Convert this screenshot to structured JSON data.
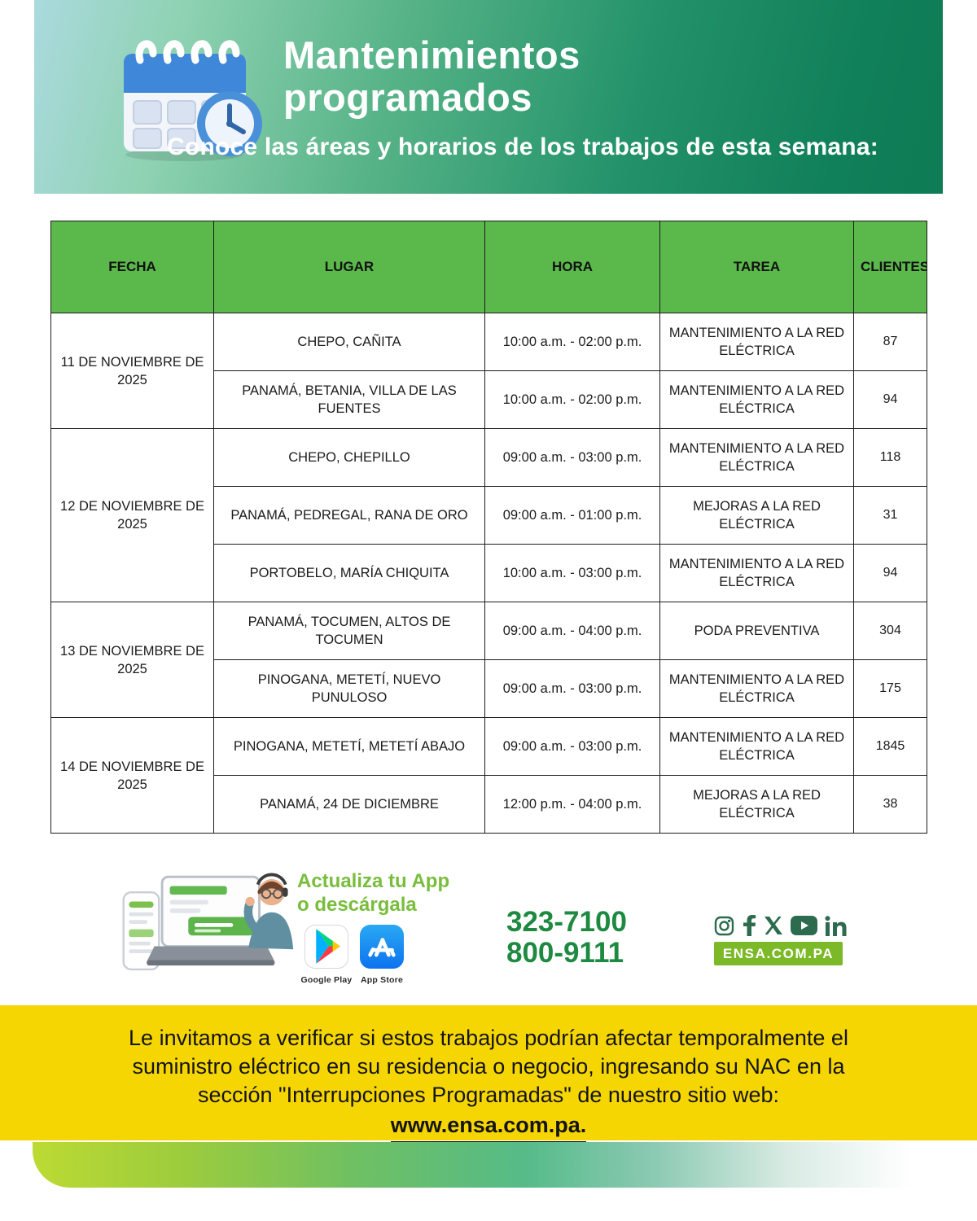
{
  "header": {
    "title_line1": "Mantenimientos",
    "title_line2": "programados",
    "subtitle": "Conoce las áreas y horarios de los trabajos de esta semana:",
    "icon": "calendar-clock-icon"
  },
  "table": {
    "columns": [
      "FECHA",
      "LUGAR",
      "HORA",
      "TAREA",
      "CLIENTES"
    ],
    "groups": [
      {
        "date": "11 DE NOVIEMBRE DE 2025",
        "rows": [
          {
            "lugar": "CHEPO, CAÑITA",
            "hora": "10:00 a.m. - 02:00 p.m.",
            "tarea": "MANTENIMIENTO A LA RED ELÉCTRICA",
            "clientes": "87"
          },
          {
            "lugar": "PANAMÁ, BETANIA, VILLA DE LAS FUENTES",
            "hora": "10:00 a.m. - 02:00 p.m.",
            "tarea": "MANTENIMIENTO A LA RED ELÉCTRICA",
            "clientes": "94"
          }
        ]
      },
      {
        "date": "12 DE NOVIEMBRE DE 2025",
        "rows": [
          {
            "lugar": "CHEPO, CHEPILLO",
            "hora": "09:00 a.m. - 03:00 p.m.",
            "tarea": "MANTENIMIENTO A LA RED ELÉCTRICA",
            "clientes": "118"
          },
          {
            "lugar": "PANAMÁ, PEDREGAL, RANA DE ORO",
            "hora": "09:00 a.m. - 01:00 p.m.",
            "tarea": "MEJORAS A LA RED ELÉCTRICA",
            "clientes": "31"
          },
          {
            "lugar": "PORTOBELO, MARÍA CHIQUITA",
            "hora": "10:00 a.m. - 03:00 p.m.",
            "tarea": "MANTENIMIENTO A LA RED ELÉCTRICA",
            "clientes": "94"
          }
        ]
      },
      {
        "date": "13 DE NOVIEMBRE DE 2025",
        "rows": [
          {
            "lugar": "PANAMÁ, TOCUMEN, ALTOS DE TOCUMEN",
            "hora": "09:00 a.m. - 04:00 p.m.",
            "tarea": "PODA PREVENTIVA",
            "clientes": "304"
          },
          {
            "lugar": "PINOGANA, METETÍ, NUEVO PUNULOSO",
            "hora": "09:00 a.m. - 03:00 p.m.",
            "tarea": "MANTENIMIENTO A LA RED ELÉCTRICA",
            "clientes": "175"
          }
        ]
      },
      {
        "date": "14 DE NOVIEMBRE DE 2025",
        "rows": [
          {
            "lugar": "PINOGANA, METETÍ, METETÍ ABAJO",
            "hora": "09:00 a.m. - 03:00 p.m.",
            "tarea": "MANTENIMIENTO A LA RED ELÉCTRICA",
            "clientes": "1845"
          },
          {
            "lugar": "PANAMÁ, 24 DE DICIEMBRE",
            "hora": "12:00 p.m. - 04:00 p.m.",
            "tarea": "MEJORAS A LA RED ELÉCTRICA",
            "clientes": "38"
          }
        ]
      }
    ]
  },
  "footer": {
    "app_promo": {
      "line1": "Actualiza tu App",
      "line2": "o descárgala",
      "google_play_label": "Google Play",
      "app_store_label": "App Store"
    },
    "phones": [
      "323-7100",
      "800-9111"
    ],
    "social_icons": [
      "instagram-icon",
      "facebook-icon",
      "x-icon",
      "youtube-icon",
      "linkedin-icon"
    ],
    "website_badge": "ENSA.COM.PA"
  },
  "notice": {
    "lines": [
      "Le invitamos a verificar si estos trabajos podrían afectar temporalmente el",
      "suministro eléctrico en su residencia o negocio, ingresando su NAC en la",
      "sección \"Interrupciones Programadas\" de nuestro sitio web:"
    ],
    "link": "www.ensa.com.pa."
  },
  "colors": {
    "table_header_green": "#5bb84b",
    "banner_dark_green": "#0e7c55",
    "notice_yellow": "#f6d602",
    "brand_lime": "#7cb928",
    "phone_green": "#1e8a41",
    "social_dark_green": "#2d6b4e"
  }
}
